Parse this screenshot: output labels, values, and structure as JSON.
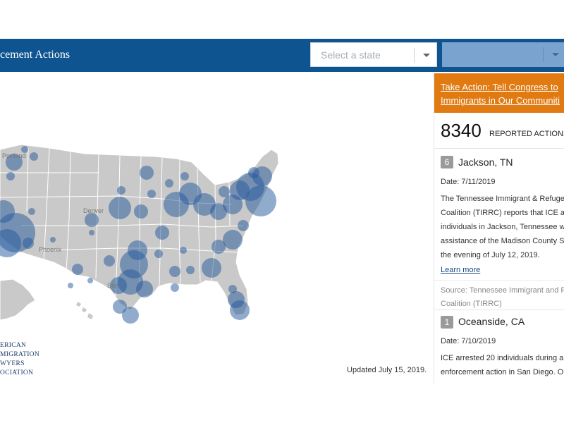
{
  "header": {
    "title": "cement Actions",
    "state_placeholder": "Select a state",
    "bg_color": "#0e5490"
  },
  "map": {
    "city_labels": [
      "Portland",
      "Denver",
      "Phoenix",
      "San"
    ]
  },
  "logo": {
    "lines": [
      "ERICAN",
      "MIGRATION",
      "WYERS",
      "OCIATION"
    ]
  },
  "updated_text": "Updated July 15, 2019.",
  "panel": {
    "take_action_line1": "Take Action: Tell Congress to",
    "take_action_line2": "Immigrants in Our Communiti",
    "take_action_color": "#e07a11",
    "count": "8340",
    "count_label": "REPORTED ACTIONS",
    "cards": [
      {
        "badge": "6",
        "location": "Jackson, TN",
        "date": "Date: 7/11/2019",
        "body": [
          "The Tennessee Immigrant & Refugee",
          "Coalition (TIRRC) reports that ICE a",
          "individuals in Jackson, Tennessee w",
          "assistance of the Madison County S",
          "the evening of July 12, 2019."
        ],
        "learn_more": "Learn more",
        "source": [
          "Source: Tennessee Immigrant and R",
          "Coalition (TIRRC)"
        ]
      },
      {
        "badge": "1",
        "location": "Oceanside, CA",
        "date": "Date: 7/10/2019",
        "body": [
          "ICE arrested 20 individuals during a",
          "enforcement action in San Diego. Op"
        ]
      }
    ]
  }
}
